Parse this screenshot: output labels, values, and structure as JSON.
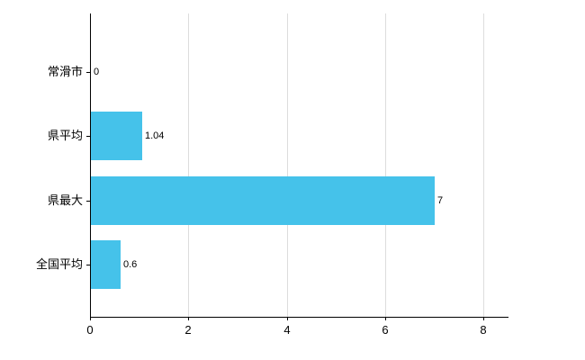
{
  "chart_data": {
    "type": "bar",
    "orientation": "horizontal",
    "title": "",
    "xlabel": "",
    "ylabel": "",
    "categories": [
      "常滑市",
      "県平均",
      "県最大",
      "全国平均"
    ],
    "values": [
      0,
      1.04,
      7,
      0.6
    ],
    "value_labels": [
      "0",
      "1.04",
      "7",
      "0.6"
    ],
    "xlim": [
      0,
      8
    ],
    "x_ticks": [
      0,
      2,
      4,
      6,
      8
    ],
    "x_tick_labels": [
      "0",
      "2",
      "4",
      "6",
      "8"
    ],
    "grid": "vertical",
    "legend": "none",
    "bar_color": "#45C2EA",
    "axis_color": "#000000",
    "gridline_color": "#DDDDDD",
    "background_color": "#FFFFFF"
  }
}
